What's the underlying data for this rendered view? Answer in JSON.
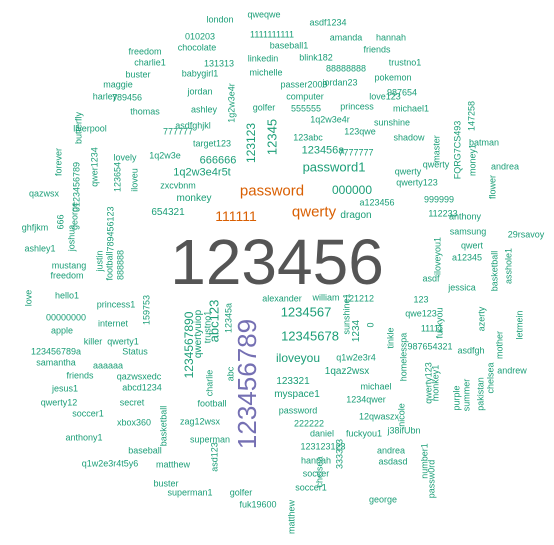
{
  "colors": {
    "green": "#1b9e77",
    "orange": "#d95f02",
    "purple": "#7570b3",
    "gray": "#555555"
  },
  "words": [
    {
      "text": "123456",
      "color": "gray"
    },
    {
      "text": "123456789",
      "color": "purple"
    },
    {
      "text": "password",
      "color": "orange"
    },
    {
      "text": "qwerty",
      "color": "orange"
    },
    {
      "text": "111111",
      "color": "orange"
    },
    {
      "text": "12345678",
      "color": "green"
    },
    {
      "text": "password1",
      "color": "green"
    },
    {
      "text": "1234567",
      "color": "green"
    },
    {
      "text": "abc123",
      "color": "green"
    },
    {
      "text": "12345",
      "color": "green"
    },
    {
      "text": "123123",
      "color": "green"
    },
    {
      "text": "1234567890",
      "color": "green"
    },
    {
      "text": "iloveyou",
      "color": "green"
    },
    {
      "text": "000000",
      "color": "green"
    },
    {
      "text": "1q2w3e4r5t",
      "color": "green"
    },
    {
      "text": "123456a",
      "color": "green"
    },
    {
      "text": "666666",
      "color": "green"
    },
    {
      "text": "monkey",
      "color": "green"
    },
    {
      "text": "dragon",
      "color": "green"
    },
    {
      "text": "qwertyuiop",
      "color": "green"
    },
    {
      "text": "654321",
      "color": "green"
    },
    {
      "text": "myspace1",
      "color": "green"
    },
    {
      "text": "1qaz2wsx",
      "color": "green"
    },
    {
      "text": "123321",
      "color": "green"
    },
    {
      "text": "1234",
      "color": "green"
    },
    {
      "text": "zxcvbnm",
      "color": "green"
    },
    {
      "text": "7777777",
      "color": "green"
    },
    {
      "text": "1q2w3e",
      "color": "green"
    },
    {
      "text": "lovely",
      "color": "green"
    },
    {
      "text": "target123",
      "color": "green"
    },
    {
      "text": "777777",
      "color": "green"
    },
    {
      "text": "123qwe",
      "color": "green"
    },
    {
      "text": "123abc",
      "color": "green"
    },
    {
      "text": "shadow",
      "color": "green"
    },
    {
      "text": "sunshine",
      "color": "green"
    },
    {
      "text": "qwerty123",
      "color": "green"
    },
    {
      "text": "qwerty",
      "color": "green"
    },
    {
      "text": "a123456",
      "color": "green"
    },
    {
      "text": "999999",
      "color": "green"
    },
    {
      "text": "112233",
      "color": "green"
    },
    {
      "text": "1q2w3e4r",
      "color": "green"
    },
    {
      "text": "555555",
      "color": "green"
    },
    {
      "text": "love123",
      "color": "green"
    },
    {
      "text": "princess",
      "color": "green"
    },
    {
      "text": "computer",
      "color": "green"
    },
    {
      "text": "passer2009",
      "color": "green"
    },
    {
      "text": "golfer",
      "color": "green"
    },
    {
      "text": "ashley",
      "color": "green"
    },
    {
      "text": "asdfghjkl",
      "color": "green"
    },
    {
      "text": "thomas",
      "color": "green"
    },
    {
      "text": "liverpool",
      "color": "green"
    },
    {
      "text": "jordan",
      "color": "green"
    },
    {
      "text": "1g2w3e4r",
      "color": "green"
    },
    {
      "text": "789456",
      "color": "green"
    },
    {
      "text": "harley",
      "color": "green"
    },
    {
      "text": "maggie",
      "color": "green"
    },
    {
      "text": "buster",
      "color": "green"
    },
    {
      "text": "babygirl1",
      "color": "green"
    },
    {
      "text": "charlie1",
      "color": "green"
    },
    {
      "text": "131313",
      "color": "green"
    },
    {
      "text": "freedom",
      "color": "green"
    },
    {
      "text": "chocolate",
      "color": "green"
    },
    {
      "text": "010203",
      "color": "green"
    },
    {
      "text": "london",
      "color": "green"
    },
    {
      "text": "qweqwe",
      "color": "green"
    },
    {
      "text": "1111111111",
      "color": "green"
    },
    {
      "text": "asdf1234",
      "color": "green"
    },
    {
      "text": "amanda",
      "color": "green"
    },
    {
      "text": "hannah",
      "color": "green"
    },
    {
      "text": "baseball1",
      "color": "green"
    },
    {
      "text": "friends",
      "color": "green"
    },
    {
      "text": "linkedin",
      "color": "green"
    },
    {
      "text": "blink182",
      "color": "green"
    },
    {
      "text": "88888888",
      "color": "green"
    },
    {
      "text": "trustno1",
      "color": "green"
    },
    {
      "text": "michelle",
      "color": "green"
    },
    {
      "text": "jordan23",
      "color": "green"
    },
    {
      "text": "pokemon",
      "color": "green"
    },
    {
      "text": "987654",
      "color": "green"
    },
    {
      "text": "michael1",
      "color": "green"
    },
    {
      "text": "147258",
      "color": "green"
    },
    {
      "text": "FQRG7CS493",
      "color": "green"
    },
    {
      "text": "batman",
      "color": "green"
    },
    {
      "text": "andrea",
      "color": "green"
    },
    {
      "text": "master",
      "color": "green"
    },
    {
      "text": "qwerty",
      "color": "green"
    },
    {
      "text": "money1",
      "color": "green"
    },
    {
      "text": "flower",
      "color": "green"
    },
    {
      "text": "anthony",
      "color": "green"
    },
    {
      "text": "samsung",
      "color": "green"
    },
    {
      "text": "qwert",
      "color": "green"
    },
    {
      "text": "29rsavoy",
      "color": "green"
    },
    {
      "text": "a12345",
      "color": "green"
    },
    {
      "text": "iloveyou1",
      "color": "green"
    },
    {
      "text": "asdf",
      "color": "green"
    },
    {
      "text": "jessica",
      "color": "green"
    },
    {
      "text": "basketball",
      "color": "green"
    },
    {
      "text": "asshole1",
      "color": "green"
    },
    {
      "text": "butterfly",
      "color": "green"
    },
    {
      "text": "forever",
      "color": "green"
    },
    {
      "text": "qwer1234",
      "color": "green"
    },
    {
      "text": "123654",
      "color": "green"
    },
    {
      "text": "0123456789",
      "color": "green"
    },
    {
      "text": "iloveu",
      "color": "green"
    },
    {
      "text": "qazwsx",
      "color": "green"
    },
    {
      "text": "666",
      "color": "green"
    },
    {
      "text": "george",
      "color": "green"
    },
    {
      "text": "joshua",
      "color": "green"
    },
    {
      "text": "ghfjkm",
      "color": "green"
    },
    {
      "text": "ashley1",
      "color": "green"
    },
    {
      "text": "mustang",
      "color": "green"
    },
    {
      "text": "freedom",
      "color": "green"
    },
    {
      "text": "hello1",
      "color": "green"
    },
    {
      "text": "justin",
      "color": "green"
    },
    {
      "text": "football",
      "color": "green"
    },
    {
      "text": "888888",
      "color": "green"
    },
    {
      "text": "789456123",
      "color": "green"
    },
    {
      "text": "love",
      "color": "green"
    },
    {
      "text": "00000000",
      "color": "green"
    },
    {
      "text": "apple",
      "color": "green"
    },
    {
      "text": "internet",
      "color": "green"
    },
    {
      "text": "princess1",
      "color": "green"
    },
    {
      "text": "159753",
      "color": "green"
    },
    {
      "text": "qwerty1",
      "color": "green"
    },
    {
      "text": "killer",
      "color": "green"
    },
    {
      "text": "Status",
      "color": "green"
    },
    {
      "text": "aaaaaa",
      "color": "green"
    },
    {
      "text": "123456789a",
      "color": "green"
    },
    {
      "text": "samantha",
      "color": "green"
    },
    {
      "text": "friends",
      "color": "green"
    },
    {
      "text": "qazwsxedc",
      "color": "green"
    },
    {
      "text": "abcd1234",
      "color": "green"
    },
    {
      "text": "jesus1",
      "color": "green"
    },
    {
      "text": "qwerty12",
      "color": "green"
    },
    {
      "text": "soccer1",
      "color": "green"
    },
    {
      "text": "secret",
      "color": "green"
    },
    {
      "text": "xbox360",
      "color": "green"
    },
    {
      "text": "anthony1",
      "color": "green"
    },
    {
      "text": "basketball",
      "color": "green"
    },
    {
      "text": "baseball",
      "color": "green"
    },
    {
      "text": "q1w2e3r4t5y6",
      "color": "green"
    },
    {
      "text": "matthew",
      "color": "green"
    },
    {
      "text": "buster",
      "color": "green"
    },
    {
      "text": "superman1",
      "color": "green"
    },
    {
      "text": "trustno1",
      "color": "green"
    },
    {
      "text": "12345a",
      "color": "green"
    },
    {
      "text": "charlie",
      "color": "green"
    },
    {
      "text": "abc",
      "color": "green"
    },
    {
      "text": "football",
      "color": "green"
    },
    {
      "text": "zag12wsx",
      "color": "green"
    },
    {
      "text": "superman",
      "color": "green"
    },
    {
      "text": "asd123",
      "color": "green"
    },
    {
      "text": "golfer",
      "color": "green"
    },
    {
      "text": "fuk19600",
      "color": "green"
    },
    {
      "text": "alexander",
      "color": "green"
    },
    {
      "text": "william",
      "color": "green"
    },
    {
      "text": "121212",
      "color": "green"
    },
    {
      "text": "123",
      "color": "green"
    },
    {
      "text": "qwe123",
      "color": "green"
    },
    {
      "text": "11111",
      "color": "green"
    },
    {
      "text": "fuckyou",
      "color": "green"
    },
    {
      "text": "azerty",
      "color": "green"
    },
    {
      "text": "mother",
      "color": "green"
    },
    {
      "text": "letmein",
      "color": "green"
    },
    {
      "text": "sunshine1",
      "color": "green"
    },
    {
      "text": "0",
      "color": "green"
    },
    {
      "text": "tinkle",
      "color": "green"
    },
    {
      "text": "homelesspa",
      "color": "green"
    },
    {
      "text": "987654321",
      "color": "green"
    },
    {
      "text": "asdfgh",
      "color": "green"
    },
    {
      "text": "andrew",
      "color": "green"
    },
    {
      "text": "q1w2e3r4",
      "color": "green"
    },
    {
      "text": "michael",
      "color": "green"
    },
    {
      "text": "1234qwer",
      "color": "green"
    },
    {
      "text": "qwerty123",
      "color": "green"
    },
    {
      "text": "monkey1",
      "color": "green"
    },
    {
      "text": "purple",
      "color": "green"
    },
    {
      "text": "summer",
      "color": "green"
    },
    {
      "text": "pakistan",
      "color": "green"
    },
    {
      "text": "chelsea",
      "color": "green"
    },
    {
      "text": "password",
      "color": "green"
    },
    {
      "text": "222222",
      "color": "green"
    },
    {
      "text": "daniel",
      "color": "green"
    },
    {
      "text": "123123123",
      "color": "green"
    },
    {
      "text": "12qwaszx",
      "color": "green"
    },
    {
      "text": "fuckyou1",
      "color": "green"
    },
    {
      "text": "nicole",
      "color": "green"
    },
    {
      "text": "j38ifUbn",
      "color": "green"
    },
    {
      "text": "andrea",
      "color": "green"
    },
    {
      "text": "asdasd",
      "color": "green"
    },
    {
      "text": "hannah",
      "color": "green"
    },
    {
      "text": "333333",
      "color": "green"
    },
    {
      "text": "soccer",
      "color": "green"
    },
    {
      "text": "soccer1",
      "color": "green"
    },
    {
      "text": "chelsea",
      "color": "green"
    },
    {
      "text": "matthew",
      "color": "green"
    },
    {
      "text": "george",
      "color": "green"
    },
    {
      "text": "passw0rd",
      "color": "green"
    },
    {
      "text": "number1",
      "color": "green"
    },
    {
      "text": "marina",
      "color": "green"
    }
  ]
}
